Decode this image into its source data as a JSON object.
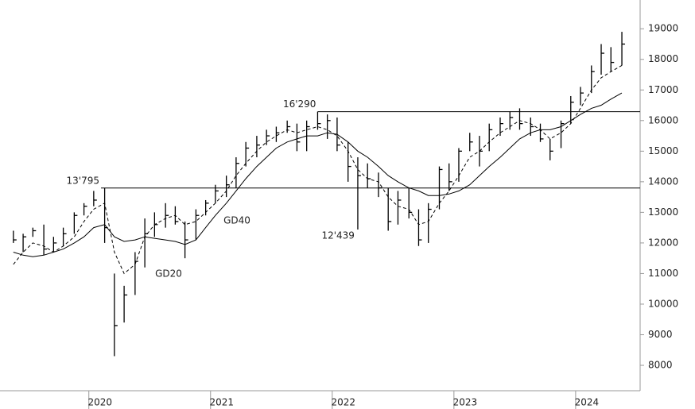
{
  "chart_data": {
    "type": "ohlc",
    "x": [
      2019.38,
      2019.46,
      2019.54,
      2019.63,
      2019.71,
      2019.79,
      2019.88,
      2019.96,
      2020.04,
      2020.13,
      2020.21,
      2020.29,
      2020.38,
      2020.46,
      2020.54,
      2020.63,
      2020.71,
      2020.79,
      2020.88,
      2020.96,
      2021.04,
      2021.13,
      2021.21,
      2021.29,
      2021.38,
      2021.46,
      2021.54,
      2021.63,
      2021.71,
      2021.79,
      2021.88,
      2021.96,
      2022.04,
      2022.13,
      2022.21,
      2022.29,
      2022.38,
      2022.46,
      2022.54,
      2022.63,
      2022.71,
      2022.79,
      2022.88,
      2022.96,
      2023.04,
      2023.13,
      2023.21,
      2023.29,
      2023.38,
      2023.46,
      2023.54,
      2023.63,
      2023.71,
      2023.79,
      2023.88,
      2023.96,
      2024.04,
      2024.13,
      2024.21,
      2024.29,
      2024.38
    ],
    "high": [
      12400,
      12300,
      12500,
      12600,
      12200,
      12500,
      13000,
      13300,
      13700,
      13795,
      11000,
      10600,
      11700,
      12800,
      13000,
      13300,
      13200,
      12700,
      13100,
      13400,
      13900,
      14200,
      14800,
      15300,
      15500,
      15700,
      15800,
      16000,
      15900,
      16000,
      16290,
      16200,
      16100,
      15300,
      14800,
      14600,
      14300,
      13800,
      13700,
      13800,
      13100,
      13300,
      14500,
      14600,
      15100,
      15600,
      15500,
      15900,
      16100,
      16300,
      16400,
      16100,
      15900,
      15400,
      16000,
      16800,
      17100,
      17800,
      18500,
      18400,
      18900
    ],
    "low": [
      12000,
      11700,
      12200,
      11600,
      11700,
      11900,
      12300,
      12900,
      13200,
      12000,
      8300,
      9400,
      10300,
      11200,
      12200,
      12500,
      12600,
      11500,
      12100,
      12900,
      13300,
      13500,
      13800,
      14500,
      14800,
      15200,
      15300,
      15600,
      15000,
      15000,
      15700,
      15400,
      15000,
      14000,
      12439,
      13800,
      13500,
      12400,
      12600,
      12800,
      11900,
      12000,
      13100,
      13700,
      14000,
      15000,
      14500,
      15000,
      15500,
      15700,
      15700,
      15500,
      15300,
      14700,
      15100,
      15900,
      16500,
      16900,
      17500,
      17600,
      17800
    ],
    "close": [
      12100,
      12200,
      12400,
      11800,
      12000,
      12300,
      12900,
      13200,
      13400,
      12500,
      9300,
      10300,
      11400,
      12300,
      12600,
      12900,
      12700,
      12100,
      12900,
      13300,
      13700,
      13900,
      14600,
      15100,
      15200,
      15500,
      15600,
      15800,
      15300,
      15800,
      15900,
      16000,
      15200,
      14500,
      14200,
      14100,
      13800,
      12700,
      13400,
      13000,
      12100,
      13100,
      14400,
      14000,
      15000,
      15300,
      15000,
      15700,
      15900,
      16100,
      15900,
      15800,
      15400,
      15000,
      15900,
      16600,
      16900,
      17600,
      18200,
      17900,
      18500
    ],
    "color": "#000000",
    "series": [
      {
        "name": "GD20",
        "color": "#000000",
        "dashed": true,
        "values": [
          11300,
          11700,
          12000,
          11900,
          11700,
          11900,
          12200,
          12700,
          13100,
          13300,
          11700,
          11000,
          11300,
          12200,
          12600,
          12800,
          12900,
          12600,
          12700,
          13000,
          13300,
          13700,
          14200,
          14600,
          15000,
          15300,
          15500,
          15700,
          15600,
          15700,
          15800,
          15700,
          15500,
          15000,
          14400,
          14100,
          14000,
          13500,
          13200,
          13100,
          12600,
          12700,
          13300,
          13700,
          14200,
          14800,
          15000,
          15300,
          15600,
          15800,
          16000,
          15900,
          15700,
          15400,
          15600,
          15900,
          16400,
          17000,
          17400,
          17600,
          17800
        ]
      },
      {
        "name": "GD40",
        "color": "#000000",
        "dashed": false,
        "values": [
          11700,
          11600,
          11550,
          11600,
          11700,
          11800,
          12000,
          12200,
          12500,
          12600,
          12200,
          12050,
          12100,
          12200,
          12150,
          12100,
          12050,
          11950,
          12100,
          12500,
          12900,
          13300,
          13700,
          14100,
          14500,
          14800,
          15100,
          15300,
          15400,
          15500,
          15500,
          15600,
          15550,
          15300,
          15000,
          14800,
          14500,
          14200,
          14000,
          13800,
          13700,
          13550,
          13550,
          13600,
          13700,
          13900,
          14200,
          14500,
          14800,
          15100,
          15400,
          15600,
          15700,
          15700,
          15800,
          16000,
          16200,
          16400,
          16500,
          16700,
          16900
        ]
      }
    ],
    "levels": [
      {
        "value": 13795,
        "label": "13'795",
        "from": 2020.1
      },
      {
        "value": 16290,
        "label": "16'290",
        "from": 2021.88
      }
    ],
    "low_annotation": {
      "value": 12439,
      "label": "12'439",
      "x": 2022.21
    },
    "xlim": [
      2019.27,
      2024.53
    ],
    "xticks": [
      {
        "value": 2020,
        "label": "2020"
      },
      {
        "value": 2021,
        "label": "2021"
      },
      {
        "value": 2022,
        "label": "2022"
      },
      {
        "value": 2023,
        "label": "2023"
      },
      {
        "value": 2024,
        "label": "2024"
      }
    ],
    "ylim": [
      7170,
      19940
    ],
    "yticks": [
      8000,
      9000,
      10000,
      11000,
      12000,
      13000,
      14000,
      15000,
      16000,
      17000,
      18000,
      19000
    ]
  }
}
